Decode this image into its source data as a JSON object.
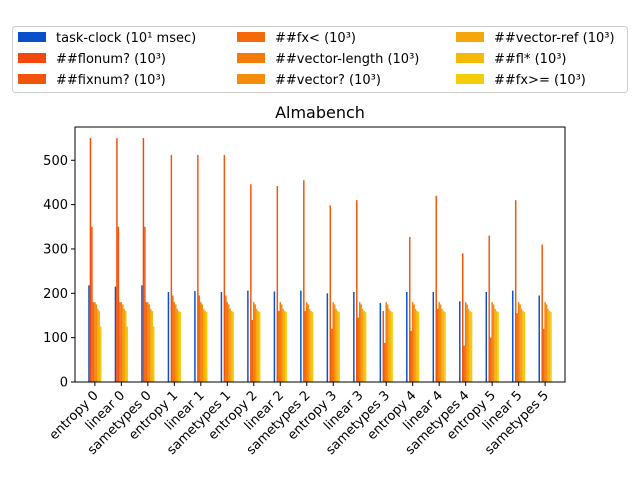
{
  "chart_data": {
    "type": "bar",
    "title": "Almabench",
    "xlabel": "",
    "ylabel": "",
    "ylim": [
      0,
      575
    ],
    "yticks": [
      0,
      100,
      200,
      300,
      400,
      500
    ],
    "grid": false,
    "legend_position": "top",
    "categories": [
      "entropy 0",
      "linear 0",
      "sametypes 0",
      "entropy 1",
      "linear 1",
      "sametypes 1",
      "entropy 2",
      "linear 2",
      "sametypes 2",
      "entropy 3",
      "linear 3",
      "sametypes 3",
      "entropy 4",
      "linear 4",
      "sametypes 4",
      "entropy 5",
      "linear 5",
      "sametypes 5"
    ],
    "series": [
      {
        "name": "task-clock (10¹ msec)",
        "color": "#0a4fcc",
        "values": [
          218,
          215,
          218,
          203,
          205,
          203,
          206,
          204,
          206,
          200,
          203,
          178,
          203,
          203,
          182,
          203,
          206,
          195
        ]
      },
      {
        "name": "##flonum? (10³)",
        "color": "#f24a0c",
        "values": [
          550,
          550,
          550,
          0,
          0,
          0,
          0,
          0,
          0,
          0,
          0,
          0,
          0,
          0,
          0,
          0,
          0,
          0
        ]
      },
      {
        "name": "##fixnum? (10³)",
        "color": "#f25508",
        "values": [
          350,
          350,
          350,
          512,
          512,
          512,
          446,
          442,
          455,
          398,
          410,
          160,
          327,
          420,
          290,
          330,
          410,
          310
        ]
      },
      {
        "name": "##fx< (10³)",
        "color": "#f46a0a",
        "values": [
          180,
          180,
          180,
          195,
          195,
          195,
          140,
          160,
          160,
          120,
          145,
          88,
          115,
          165,
          82,
          100,
          155,
          120
        ]
      },
      {
        "name": "##vector-length (10³)",
        "color": "#f47b0a",
        "values": [
          180,
          180,
          180,
          180,
          180,
          180,
          180,
          180,
          180,
          180,
          180,
          180,
          180,
          180,
          180,
          180,
          180,
          180
        ]
      },
      {
        "name": "##vector? (10³)",
        "color": "#f58d0a",
        "values": [
          175,
          175,
          175,
          175,
          175,
          175,
          175,
          175,
          175,
          175,
          175,
          175,
          175,
          175,
          175,
          175,
          175,
          175
        ]
      },
      {
        "name": "##vector-ref (10³)",
        "color": "#f5a60a",
        "values": [
          165,
          165,
          165,
          165,
          165,
          165,
          165,
          165,
          165,
          165,
          165,
          165,
          165,
          165,
          165,
          165,
          165,
          165
        ]
      },
      {
        "name": "##fl* (10³)",
        "color": "#f5ba08",
        "values": [
          160,
          160,
          160,
          160,
          160,
          160,
          160,
          160,
          160,
          160,
          160,
          160,
          160,
          160,
          160,
          160,
          160,
          160
        ]
      },
      {
        "name": "##fx>= (10³)",
        "color": "#f5cc08",
        "values": [
          125,
          125,
          125,
          158,
          158,
          158,
          158,
          158,
          158,
          158,
          158,
          158,
          158,
          158,
          158,
          158,
          158,
          158
        ]
      }
    ]
  }
}
